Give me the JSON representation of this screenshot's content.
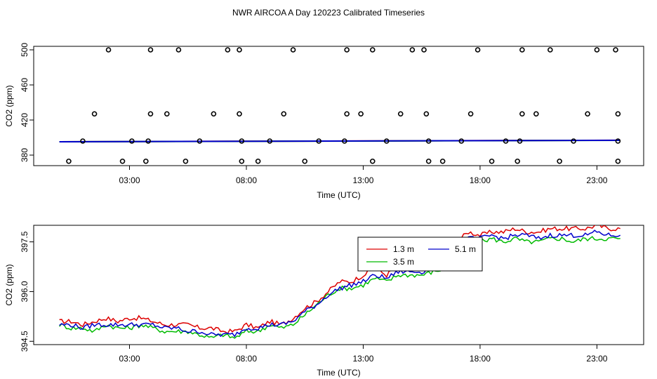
{
  "figure_title": "NWR AIRCOA A  Day 120223  Calibrated Timeseries",
  "colors": {
    "red": "#dd0000",
    "green": "#00bb00",
    "blue": "#0000cc",
    "points": "#000000"
  },
  "chart_data": [
    {
      "type": "scatter",
      "name": "top",
      "xlabel": "Time (UTC)",
      "ylabel": "CO2 (ppm)",
      "xlim": [
        -1.1,
        25.0
      ],
      "ylim": [
        368,
        504
      ],
      "xticks": [
        3,
        8,
        13,
        18,
        23
      ],
      "xtick_labels": [
        "03:00",
        "08:00",
        "13:00",
        "18:00",
        "23:00"
      ],
      "yticks": [
        380,
        420,
        460,
        500
      ],
      "ytick_labels": [
        "380",
        "420",
        "460",
        "500"
      ],
      "points": [
        [
          0.4,
          373
        ],
        [
          2.7,
          373
        ],
        [
          3.7,
          373
        ],
        [
          5.4,
          373
        ],
        [
          7.8,
          373
        ],
        [
          8.5,
          373
        ],
        [
          10.5,
          373
        ],
        [
          13.4,
          373
        ],
        [
          15.8,
          373
        ],
        [
          16.4,
          373
        ],
        [
          18.5,
          373
        ],
        [
          19.6,
          373
        ],
        [
          21.4,
          373
        ],
        [
          23.9,
          373
        ],
        [
          1.0,
          396
        ],
        [
          3.1,
          396
        ],
        [
          3.8,
          396
        ],
        [
          6.0,
          396
        ],
        [
          7.8,
          396
        ],
        [
          9.0,
          396
        ],
        [
          11.1,
          396
        ],
        [
          12.2,
          396
        ],
        [
          14.0,
          396
        ],
        [
          15.8,
          396
        ],
        [
          17.2,
          396
        ],
        [
          19.1,
          396
        ],
        [
          19.7,
          396
        ],
        [
          22.0,
          396
        ],
        [
          23.9,
          396
        ],
        [
          1.5,
          427
        ],
        [
          3.9,
          427
        ],
        [
          4.6,
          427
        ],
        [
          6.6,
          427
        ],
        [
          7.7,
          427
        ],
        [
          9.6,
          427
        ],
        [
          12.3,
          427
        ],
        [
          12.9,
          427
        ],
        [
          14.6,
          427
        ],
        [
          15.7,
          427
        ],
        [
          17.6,
          427
        ],
        [
          19.8,
          427
        ],
        [
          20.4,
          427
        ],
        [
          22.6,
          427
        ],
        [
          23.9,
          427
        ],
        [
          2.1,
          500
        ],
        [
          3.9,
          500
        ],
        [
          5.1,
          500
        ],
        [
          7.2,
          500
        ],
        [
          7.7,
          500
        ],
        [
          10.0,
          500
        ],
        [
          12.3,
          500
        ],
        [
          13.4,
          500
        ],
        [
          15.1,
          500
        ],
        [
          15.6,
          500
        ],
        [
          17.9,
          500
        ],
        [
          19.8,
          500
        ],
        [
          21.0,
          500
        ],
        [
          23.0,
          500
        ],
        [
          23.8,
          500
        ]
      ],
      "lines": [
        {
          "name": "1.3 m",
          "color": "#dd0000",
          "start": 394.5,
          "end": 398.0
        },
        {
          "name": "3.5 m",
          "color": "#00bb00",
          "start": 394.4,
          "end": 397.6
        },
        {
          "name": "5.1 m",
          "color": "#0000cc",
          "start": 394.4,
          "end": 397.8
        }
      ]
    },
    {
      "type": "line",
      "name": "bottom",
      "xlabel": "Time (UTC)",
      "ylabel": "CO2 (ppm)",
      "xlim": [
        -1.1,
        25.0
      ],
      "ylim": [
        394.4,
        398.0
      ],
      "xticks": [
        3,
        8,
        13,
        18,
        23
      ],
      "xtick_labels": [
        "03:00",
        "08:00",
        "13:00",
        "18:00",
        "23:00"
      ],
      "yticks": [
        394.5,
        396.0,
        397.5
      ],
      "ytick_labels": [
        "394.5",
        "396.0",
        "397.5"
      ],
      "x_start": 0.0,
      "x_step": 0.5,
      "series": [
        {
          "name": "1.3 m",
          "color": "#dd0000",
          "values": [
            395.1,
            395.1,
            395.0,
            395.1,
            395.2,
            395.1,
            395.2,
            395.2,
            395.1,
            395.0,
            395.0,
            395.0,
            394.9,
            394.9,
            394.8,
            394.8,
            395.0,
            394.9,
            395.1,
            395.0,
            395.2,
            395.5,
            395.7,
            396.0,
            396.3,
            396.3,
            396.5,
            396.7,
            396.5,
            396.8,
            396.7,
            396.9,
            396.9,
            397.1,
            397.5,
            397.8,
            397.7,
            397.8,
            397.8,
            397.9,
            397.8,
            397.8,
            397.9,
            397.9,
            397.9,
            397.9,
            398.0,
            397.9,
            397.9
          ]
        },
        {
          "name": "3.5 m",
          "color": "#00bb00",
          "values": [
            395.0,
            394.9,
            394.9,
            394.8,
            395.0,
            394.9,
            394.9,
            395.0,
            394.9,
            394.8,
            394.8,
            394.8,
            394.7,
            394.6,
            394.7,
            394.6,
            394.8,
            394.8,
            395.0,
            394.9,
            395.0,
            395.3,
            395.6,
            395.9,
            396.1,
            396.1,
            396.2,
            396.4,
            396.3,
            396.5,
            396.5,
            396.5,
            396.6,
            396.7,
            397.2,
            397.5,
            397.5,
            397.6,
            397.5,
            397.6,
            397.5,
            397.5,
            397.6,
            397.6,
            397.5,
            397.6,
            397.6,
            397.6,
            397.6
          ]
        },
        {
          "name": "5.1 m",
          "color": "#0000cc",
          "values": [
            395.0,
            395.0,
            394.9,
            395.0,
            395.0,
            395.0,
            395.0,
            395.0,
            395.0,
            394.9,
            394.9,
            394.8,
            394.8,
            394.7,
            394.7,
            394.7,
            394.9,
            394.9,
            395.0,
            395.0,
            395.1,
            395.4,
            395.6,
            395.9,
            396.1,
            396.2,
            396.3,
            396.5,
            396.4,
            396.6,
            396.6,
            396.6,
            396.7,
            396.9,
            397.3,
            397.6,
            397.6,
            397.7,
            397.6,
            397.7,
            397.7,
            397.6,
            397.7,
            397.7,
            397.7,
            397.7,
            397.8,
            397.7,
            397.7
          ]
        }
      ],
      "legend": {
        "placement": "top-right",
        "entries": [
          "1.3 m",
          "5.1 m",
          "3.5 m"
        ]
      }
    }
  ]
}
